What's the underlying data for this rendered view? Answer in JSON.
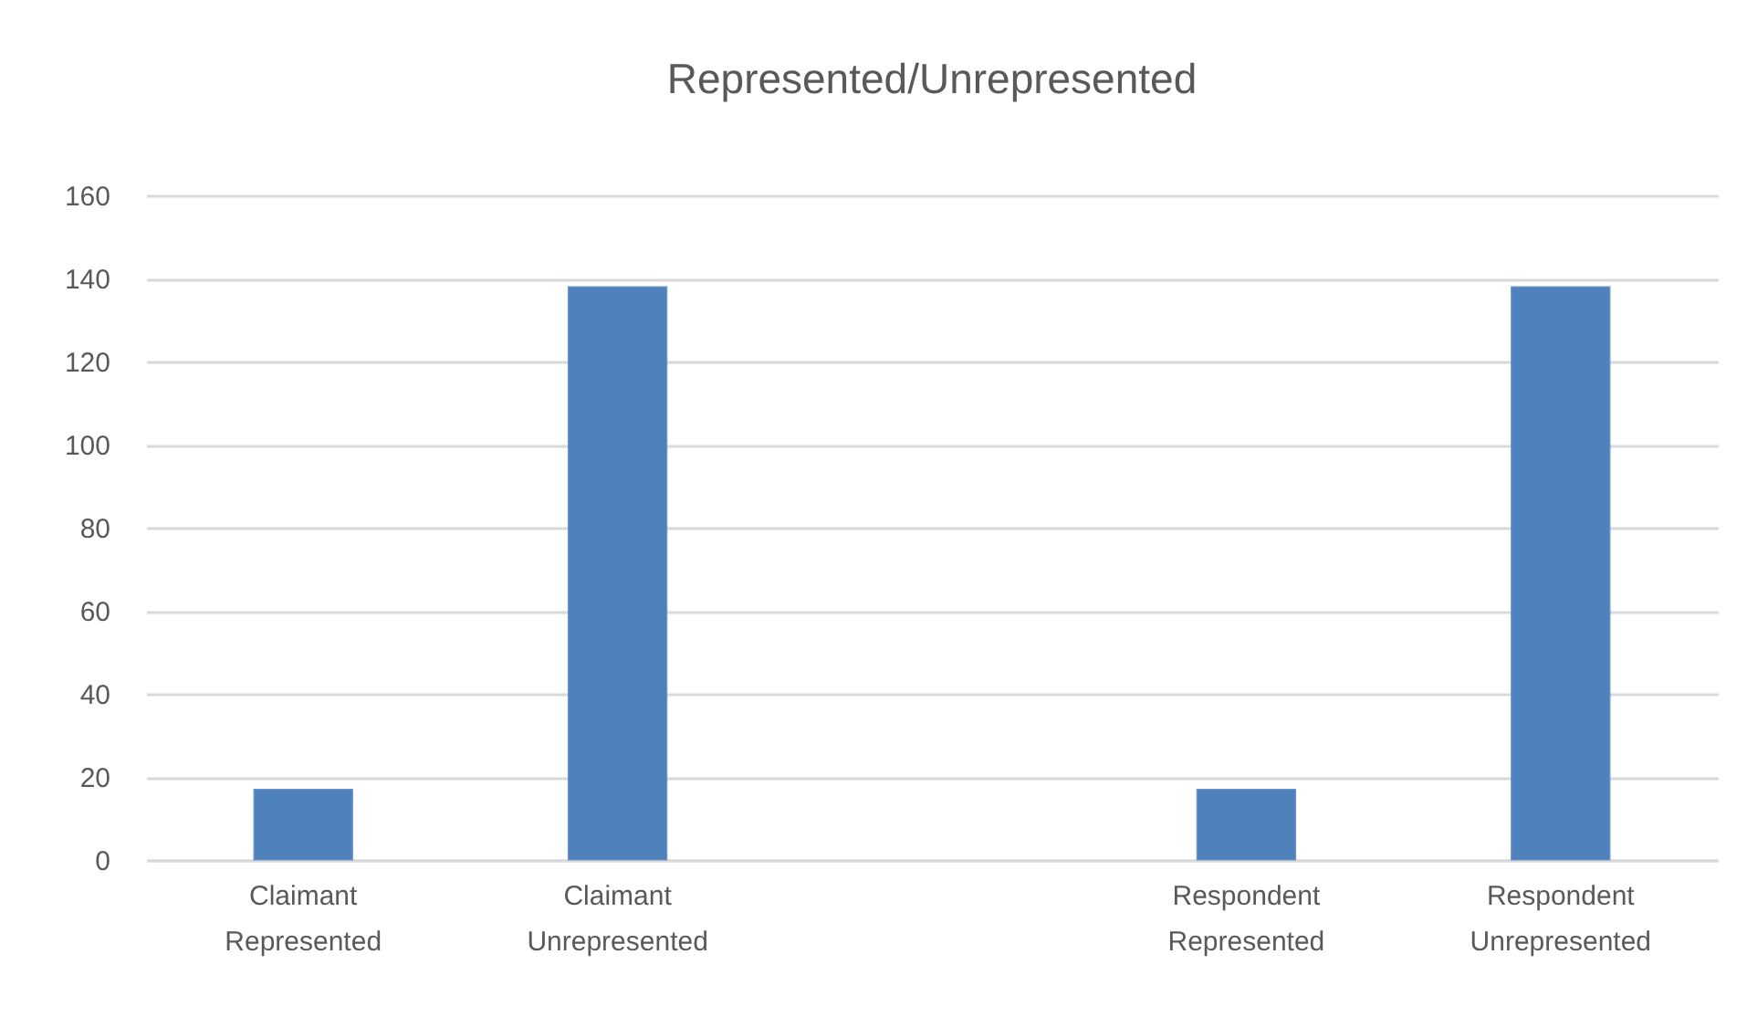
{
  "chart_data": {
    "type": "bar",
    "title": "Represented/Unrepresented",
    "categories": [
      "Claimant Represented",
      "Claimant Unrepresented",
      null,
      "Respondent Represented",
      "Respondent Unrepresented"
    ],
    "values": [
      17,
      138,
      null,
      17,
      138
    ],
    "color": "#4f81bd",
    "ylim": [
      0,
      160
    ],
    "yticks": [
      0,
      20,
      40,
      60,
      80,
      100,
      120,
      140,
      160
    ],
    "grid": "y"
  }
}
